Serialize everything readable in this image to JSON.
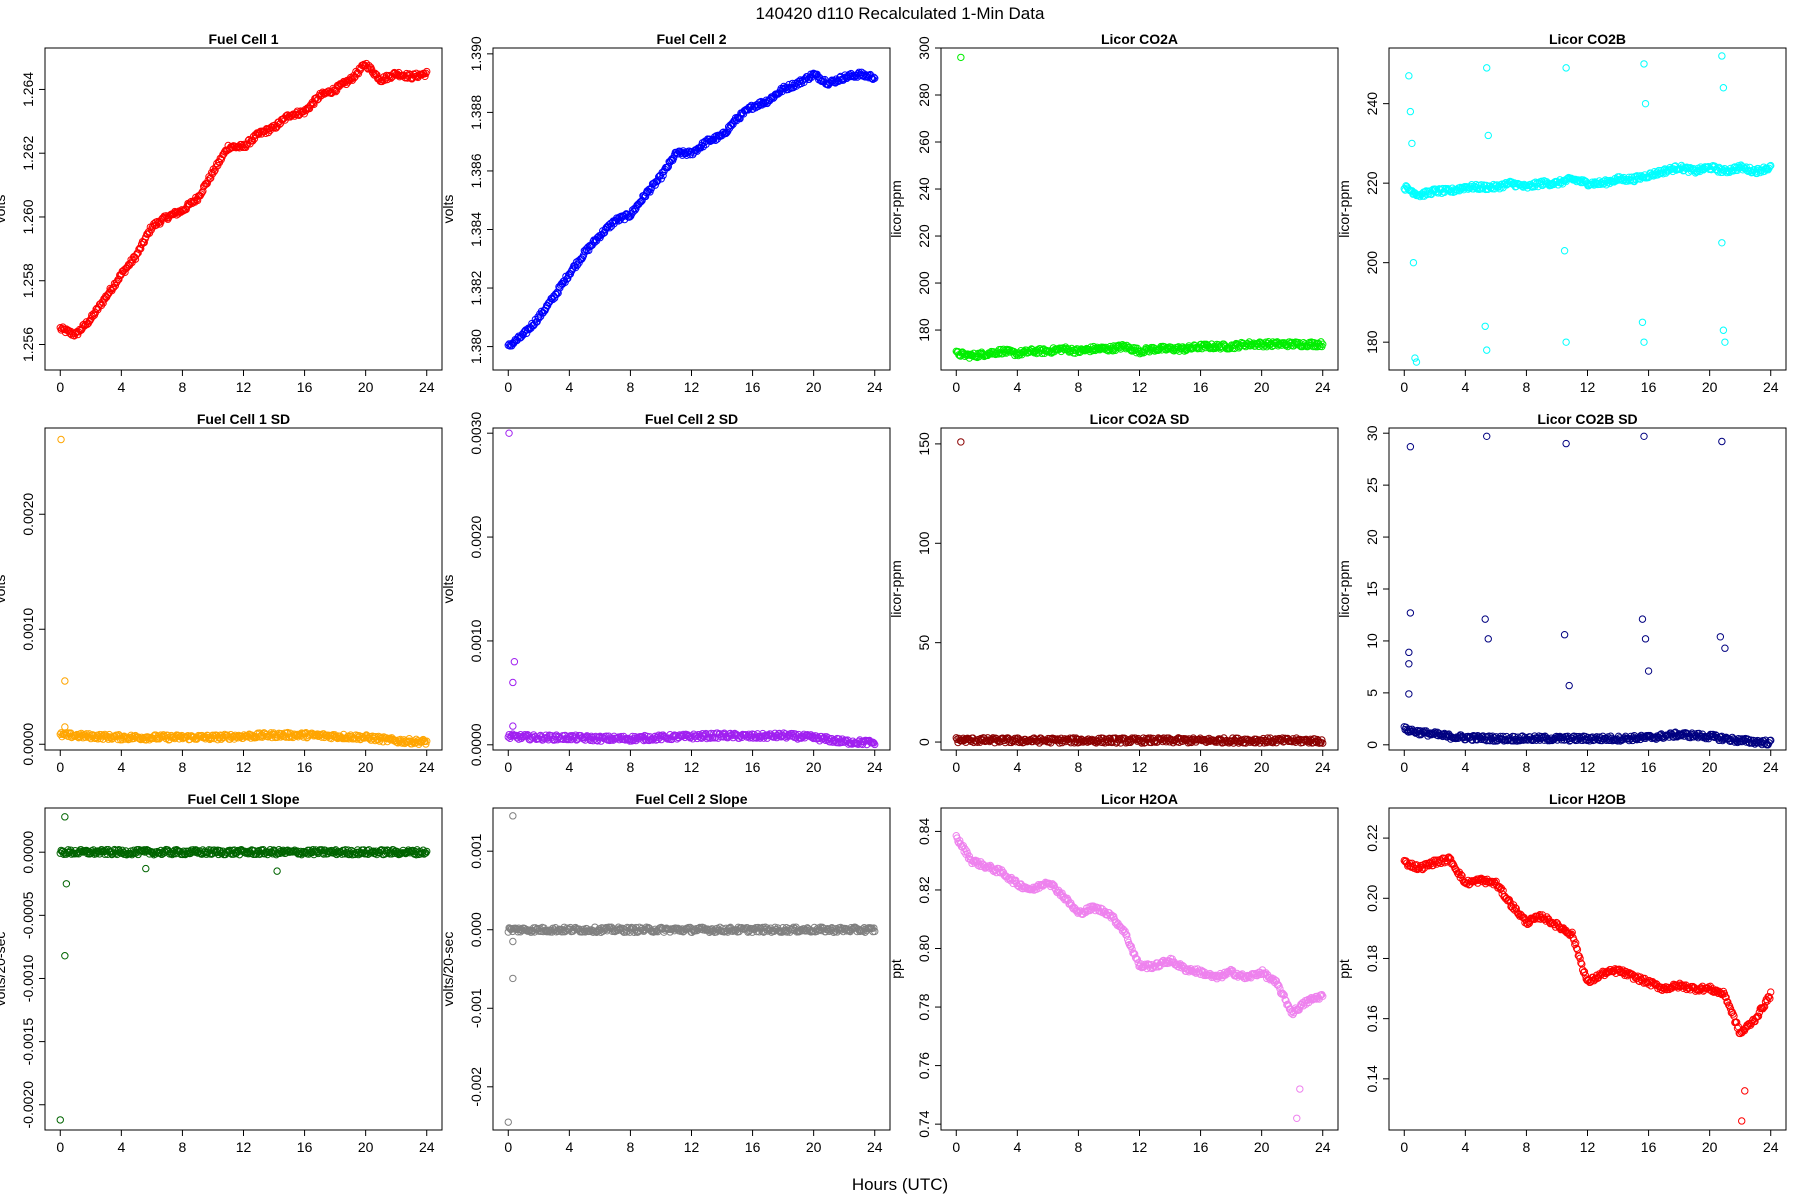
{
  "figure": {
    "title": "140420   d110   Recalculated 1-Min Data",
    "xlabel": "Hours (UTC)"
  },
  "chart_data": [
    {
      "type": "scatter",
      "title": "Fuel Cell 1",
      "ylabel": "volts",
      "color": "#ff0000",
      "xlim": [
        -1,
        25
      ],
      "ylim": [
        1.2552,
        1.2653
      ],
      "xticks": [
        "0",
        "4",
        "8",
        "12",
        "16",
        "20",
        "24"
      ],
      "yticks": [
        "1.256",
        "1.258",
        "1.260",
        "1.262",
        "1.264"
      ],
      "x": [
        0,
        1,
        2,
        3,
        4,
        5,
        6,
        7,
        8,
        9,
        10,
        11,
        12,
        13,
        14,
        15,
        16,
        17,
        18,
        19,
        20,
        21,
        22,
        23,
        24
      ],
      "y": [
        1.2565,
        1.2563,
        1.2568,
        1.2575,
        1.2582,
        1.2588,
        1.2597,
        1.26,
        1.2602,
        1.2606,
        1.2614,
        1.2622,
        1.2622,
        1.2626,
        1.2628,
        1.2632,
        1.2633,
        1.2638,
        1.264,
        1.2643,
        1.2648,
        1.2643,
        1.2645,
        1.2644,
        1.2645
      ]
    },
    {
      "type": "scatter",
      "title": "Fuel Cell 2",
      "ylabel": "volts",
      "color": "#0000ff",
      "xlim": [
        -1,
        25
      ],
      "ylim": [
        1.3792,
        1.3902
      ],
      "xticks": [
        "0",
        "4",
        "8",
        "12",
        "16",
        "20",
        "24"
      ],
      "yticks": [
        "1.380",
        "1.382",
        "1.384",
        "1.386",
        "1.388",
        "1.390"
      ],
      "x": [
        0,
        1,
        2,
        3,
        4,
        5,
        6,
        7,
        8,
        9,
        10,
        11,
        12,
        13,
        14,
        15,
        16,
        17,
        18,
        19,
        20,
        21,
        22,
        23,
        24
      ],
      "y": [
        1.38,
        1.3804,
        1.381,
        1.3817,
        1.3825,
        1.3832,
        1.3838,
        1.3843,
        1.3845,
        1.3852,
        1.3858,
        1.3866,
        1.3866,
        1.387,
        1.3872,
        1.3878,
        1.3882,
        1.3884,
        1.3888,
        1.389,
        1.3893,
        1.389,
        1.3892,
        1.3893,
        1.3892
      ]
    },
    {
      "type": "scatter",
      "title": "Licor CO2A",
      "ylabel": "licor-ppm",
      "color": "#00ee00",
      "xlim": [
        -1,
        25
      ],
      "ylim": [
        163,
        300
      ],
      "xticks": [
        "0",
        "4",
        "8",
        "12",
        "16",
        "20",
        "24"
      ],
      "yticks": [
        "180",
        "200",
        "220",
        "240",
        "260",
        "280",
        "300"
      ],
      "x": [
        0,
        1,
        2,
        3,
        4,
        5,
        6,
        7,
        8,
        9,
        10,
        11,
        12,
        13,
        14,
        15,
        16,
        17,
        18,
        19,
        20,
        21,
        22,
        23,
        24
      ],
      "y": [
        170,
        169,
        170,
        171,
        170,
        171,
        171,
        172,
        171,
        172,
        172,
        173,
        171,
        172,
        172,
        172,
        173,
        173,
        173,
        174,
        174,
        174,
        174,
        174,
        174
      ],
      "outliers": [
        {
          "x": 0.3,
          "y": 296
        }
      ]
    },
    {
      "type": "scatter",
      "title": "Licor CO2B",
      "ylabel": "licor-ppm",
      "color": "#00ffff",
      "xlim": [
        -1,
        25
      ],
      "ylim": [
        173,
        254
      ],
      "xticks": [
        "0",
        "4",
        "8",
        "12",
        "16",
        "20",
        "24"
      ],
      "yticks": [
        "180",
        "200",
        "220",
        "240"
      ],
      "x": [
        0,
        1,
        2,
        3,
        4,
        5,
        6,
        7,
        8,
        9,
        10,
        11,
        12,
        13,
        14,
        15,
        16,
        17,
        18,
        19,
        20,
        21,
        22,
        23,
        24
      ],
      "y": [
        219,
        217,
        218,
        218,
        219,
        219,
        219,
        220,
        219,
        220,
        220,
        221,
        220,
        220,
        221,
        221,
        222,
        223,
        224,
        223,
        224,
        223,
        224,
        223,
        224
      ],
      "outliers": [
        {
          "x": 0.3,
          "y": 247
        },
        {
          "x": 0.4,
          "y": 238
        },
        {
          "x": 0.5,
          "y": 230
        },
        {
          "x": 0.6,
          "y": 200
        },
        {
          "x": 0.7,
          "y": 176
        },
        {
          "x": 0.8,
          "y": 175
        },
        {
          "x": 5.4,
          "y": 249
        },
        {
          "x": 5.5,
          "y": 232
        },
        {
          "x": 5.3,
          "y": 184
        },
        {
          "x": 5.4,
          "y": 178
        },
        {
          "x": 10.6,
          "y": 249
        },
        {
          "x": 10.5,
          "y": 203
        },
        {
          "x": 10.6,
          "y": 180
        },
        {
          "x": 15.7,
          "y": 250
        },
        {
          "x": 15.8,
          "y": 240
        },
        {
          "x": 15.6,
          "y": 185
        },
        {
          "x": 15.7,
          "y": 180
        },
        {
          "x": 20.8,
          "y": 252
        },
        {
          "x": 20.9,
          "y": 244
        },
        {
          "x": 20.8,
          "y": 205
        },
        {
          "x": 20.9,
          "y": 183
        },
        {
          "x": 21.0,
          "y": 180
        }
      ]
    },
    {
      "type": "scatter",
      "title": "Fuel Cell 1 SD",
      "ylabel": "volts",
      "color": "#ffa500",
      "xlim": [
        -1,
        25
      ],
      "ylim": [
        -5e-05,
        0.00275
      ],
      "xticks": [
        "0",
        "4",
        "8",
        "12",
        "16",
        "20",
        "24"
      ],
      "yticks": [
        "0.0000",
        "0.0010",
        "0.0020"
      ],
      "x": [
        0,
        2,
        4,
        6,
        8,
        10,
        12,
        14,
        16,
        18,
        20,
        22,
        24
      ],
      "y": [
        8e-05,
        7e-05,
        6e-05,
        6e-05,
        6e-05,
        6e-05,
        7e-05,
        8e-05,
        8e-05,
        7e-05,
        6e-05,
        3e-05,
        2e-05
      ],
      "outliers": [
        {
          "x": 0.05,
          "y": 0.00265
        },
        {
          "x": 0.3,
          "y": 0.00055
        },
        {
          "x": 0.3,
          "y": 0.00015
        }
      ]
    },
    {
      "type": "scatter",
      "title": "Fuel Cell 2 SD",
      "ylabel": "volts",
      "color": "#a020f0",
      "xlim": [
        -1,
        25
      ],
      "ylim": [
        -5e-05,
        0.00305
      ],
      "xticks": [
        "0",
        "4",
        "8",
        "12",
        "16",
        "20",
        "24"
      ],
      "yticks": [
        "0.0000",
        "0.0010",
        "0.0020",
        "0.0030"
      ],
      "x": [
        0,
        2,
        4,
        6,
        8,
        10,
        12,
        14,
        16,
        18,
        20,
        22,
        24
      ],
      "y": [
        8e-05,
        7e-05,
        7e-05,
        6e-05,
        6e-05,
        7e-05,
        8e-05,
        9e-05,
        8e-05,
        9e-05,
        7e-05,
        3e-05,
        2e-05
      ],
      "outliers": [
        {
          "x": 0.05,
          "y": 0.003
        },
        {
          "x": 0.4,
          "y": 0.0008
        },
        {
          "x": 0.3,
          "y": 0.0006
        },
        {
          "x": 0.3,
          "y": 0.00018
        }
      ]
    },
    {
      "type": "scatter",
      "title": "Licor CO2A SD",
      "ylabel": "licor-ppm",
      "color": "#8b0000",
      "xlim": [
        -1,
        25
      ],
      "ylim": [
        -4,
        158
      ],
      "xticks": [
        "0",
        "4",
        "8",
        "12",
        "16",
        "20",
        "24"
      ],
      "yticks": [
        "0",
        "50",
        "100",
        "150"
      ],
      "x": [
        0,
        4,
        8,
        12,
        16,
        20,
        24
      ],
      "y": [
        1,
        0.8,
        0.8,
        0.8,
        0.8,
        0.8,
        0.6
      ],
      "outliers": [
        {
          "x": 0.3,
          "y": 151
        }
      ]
    },
    {
      "type": "scatter",
      "title": "Licor CO2B SD",
      "ylabel": "licor-ppm",
      "color": "#000080",
      "xlim": [
        -1,
        25
      ],
      "ylim": [
        -0.5,
        30.5
      ],
      "xticks": [
        "0",
        "4",
        "8",
        "12",
        "16",
        "20",
        "24"
      ],
      "yticks": [
        "0",
        "5",
        "10",
        "15",
        "20",
        "25",
        "30"
      ],
      "x": [
        0,
        1,
        2,
        3,
        4,
        6,
        8,
        10,
        12,
        14,
        16,
        18,
        20,
        22,
        24
      ],
      "y": [
        1.5,
        1.2,
        1.0,
        0.8,
        0.7,
        0.6,
        0.6,
        0.6,
        0.6,
        0.6,
        0.7,
        1.0,
        0.8,
        0.4,
        0.2
      ],
      "outliers": [
        {
          "x": 0.4,
          "y": 28.7
        },
        {
          "x": 0.4,
          "y": 12.7
        },
        {
          "x": 0.3,
          "y": 8.9
        },
        {
          "x": 0.3,
          "y": 7.8
        },
        {
          "x": 0.3,
          "y": 4.9
        },
        {
          "x": 5.4,
          "y": 29.7
        },
        {
          "x": 5.3,
          "y": 12.1
        },
        {
          "x": 5.5,
          "y": 10.2
        },
        {
          "x": 10.6,
          "y": 29.0
        },
        {
          "x": 10.5,
          "y": 10.6
        },
        {
          "x": 10.8,
          "y": 5.7
        },
        {
          "x": 15.7,
          "y": 29.7
        },
        {
          "x": 15.6,
          "y": 12.1
        },
        {
          "x": 15.8,
          "y": 10.2
        },
        {
          "x": 16.0,
          "y": 7.1
        },
        {
          "x": 20.8,
          "y": 29.2
        },
        {
          "x": 20.7,
          "y": 10.4
        },
        {
          "x": 21.0,
          "y": 9.3
        }
      ]
    },
    {
      "type": "scatter",
      "title": "Fuel Cell 1 Slope",
      "ylabel": "volts/20-sec",
      "color": "#006400",
      "xlim": [
        -1,
        25
      ],
      "ylim": [
        -0.0022,
        0.00035
      ],
      "xticks": [
        "0",
        "4",
        "8",
        "12",
        "16",
        "20",
        "24"
      ],
      "yticks": [
        "-0.0020",
        "-0.0015",
        "-0.0010",
        "-0.0005",
        "0.0000"
      ],
      "x": [
        0,
        4,
        8,
        12,
        16,
        20,
        24
      ],
      "y": [
        0,
        0,
        0,
        0,
        0,
        0,
        0
      ],
      "outliers": [
        {
          "x": 0.3,
          "y": 0.00028
        },
        {
          "x": 0.3,
          "y": -0.00082
        },
        {
          "x": 0.0,
          "y": -0.00212
        },
        {
          "x": 0.4,
          "y": -0.00025
        },
        {
          "x": 14.2,
          "y": -0.00015
        },
        {
          "x": 5.6,
          "y": -0.00013
        }
      ]
    },
    {
      "type": "scatter",
      "title": "Fuel Cell 2 Slope",
      "ylabel": "volts/20-sec",
      "color": "#808080",
      "xlim": [
        -1,
        25
      ],
      "ylim": [
        -0.00255,
        0.00155
      ],
      "xticks": [
        "0",
        "4",
        "8",
        "12",
        "16",
        "20",
        "24"
      ],
      "yticks": [
        "-0.002",
        "-0.001",
        "0.000",
        "0.001"
      ],
      "x": [
        0,
        4,
        8,
        12,
        16,
        20,
        24
      ],
      "y": [
        0,
        0,
        0,
        0,
        0,
        0,
        0
      ],
      "outliers": [
        {
          "x": 0.3,
          "y": 0.00145
        },
        {
          "x": 0.3,
          "y": -0.00062
        },
        {
          "x": 0.0,
          "y": -0.00245
        },
        {
          "x": 0.3,
          "y": -0.00015
        }
      ]
    },
    {
      "type": "scatter",
      "title": "Licor H2OA",
      "ylabel": "ppt",
      "color": "#ee82ee",
      "xlim": [
        -1,
        25
      ],
      "ylim": [
        0.738,
        0.848
      ],
      "xticks": [
        "0",
        "4",
        "8",
        "12",
        "16",
        "20",
        "24"
      ],
      "yticks": [
        "0.74",
        "0.76",
        "0.78",
        "0.80",
        "0.82",
        "0.84"
      ],
      "x": [
        0,
        1,
        2,
        3,
        4,
        5,
        6,
        7,
        8,
        9,
        10,
        11,
        12,
        13,
        14,
        15,
        16,
        17,
        18,
        19,
        20,
        21,
        22,
        23,
        24
      ],
      "y": [
        0.838,
        0.83,
        0.828,
        0.826,
        0.822,
        0.82,
        0.823,
        0.818,
        0.812,
        0.814,
        0.812,
        0.806,
        0.794,
        0.794,
        0.796,
        0.793,
        0.792,
        0.79,
        0.792,
        0.79,
        0.792,
        0.788,
        0.778,
        0.782,
        0.784
      ],
      "outliers": [
        {
          "x": 22.3,
          "y": 0.742
        },
        {
          "x": 22.5,
          "y": 0.752
        }
      ]
    },
    {
      "type": "scatter",
      "title": "Licor H2OB",
      "ylabel": "ppt",
      "color": "#ff0000",
      "xlim": [
        -1,
        25
      ],
      "ylim": [
        0.123,
        0.23
      ],
      "xticks": [
        "0",
        "4",
        "8",
        "12",
        "16",
        "20",
        "24"
      ],
      "yticks": [
        "0.14",
        "0.16",
        "0.18",
        "0.20",
        "0.22"
      ],
      "x": [
        0,
        1,
        2,
        3,
        4,
        5,
        6,
        7,
        8,
        9,
        10,
        11,
        12,
        13,
        14,
        15,
        16,
        17,
        18,
        19,
        20,
        21,
        22,
        23,
        24
      ],
      "y": [
        0.212,
        0.21,
        0.212,
        0.213,
        0.205,
        0.206,
        0.205,
        0.198,
        0.192,
        0.194,
        0.191,
        0.188,
        0.172,
        0.175,
        0.176,
        0.174,
        0.172,
        0.17,
        0.171,
        0.17,
        0.17,
        0.168,
        0.155,
        0.16,
        0.168
      ],
      "outliers": [
        {
          "x": 22.1,
          "y": 0.126
        },
        {
          "x": 22.3,
          "y": 0.136
        }
      ]
    }
  ]
}
